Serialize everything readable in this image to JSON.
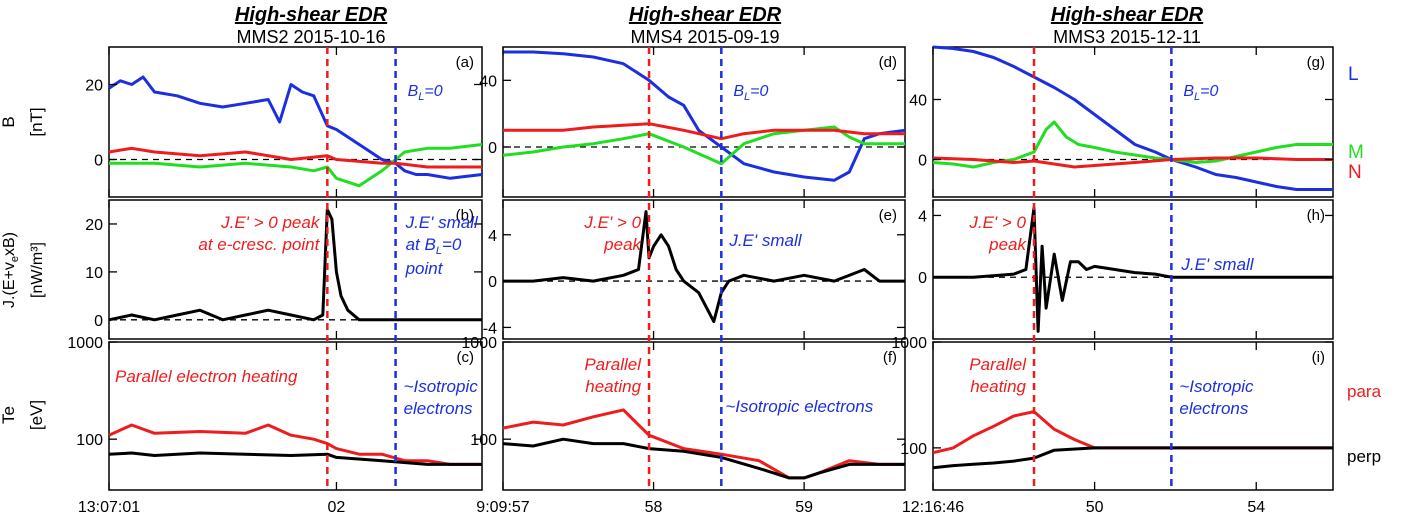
{
  "colors": {
    "L": "#1c2fe0",
    "M": "#22dd22",
    "N": "#ee1c1c",
    "black": "#000000",
    "red": "#ee1c1c",
    "blue": "#1c2fe0"
  },
  "row_labels": {
    "b_main": "B",
    "b_unit": "[nT]",
    "j_main": "J.(E+v",
    "j_sub": "e",
    "j_tail": "xB)",
    "j_unit": "[nW/m³]",
    "te_main": "Te",
    "te_unit": "[eV]"
  },
  "legend": {
    "B": [
      {
        "text": "L",
        "color": "#1c2fe0"
      },
      {
        "text": "M",
        "color": "#22dd22"
      },
      {
        "text": "N",
        "color": "#ee1c1c"
      }
    ],
    "Te": [
      {
        "text": "para",
        "color": "#ee1c1c"
      },
      {
        "text": "perp",
        "color": "#000000"
      }
    ]
  },
  "columns": [
    {
      "title": "High-shear EDR",
      "subtitle": "MMS2 2015-10-16",
      "x_ticks": [
        "13:07:01",
        "02"
      ],
      "panels": {
        "b": "(a)",
        "j": "(b)",
        "te": "(c)"
      },
      "annotations": {
        "bl0": "B",
        "bl0_sub": "L",
        "bl0_tail": "=0",
        "j_red": [
          "J.E' > 0 peak",
          "at e-cresc. point"
        ],
        "j_blue": [
          "J.E' small",
          "at B",
          "point"
        ],
        "j_blue_sub": "L",
        "j_blue_tail": "=0",
        "te_red": [
          "Parallel electron heating"
        ],
        "te_blue": [
          "~Isotropic",
          "electrons"
        ]
      },
      "b_ticks": [
        "20",
        "0"
      ],
      "j_ticks": [
        "20",
        "10",
        "0"
      ],
      "te_ticks": [
        "1000",
        "100"
      ]
    },
    {
      "title": "High-shear EDR",
      "subtitle": "MMS4 2015-09-19",
      "x_ticks": [
        "9:09:57",
        "58",
        "59"
      ],
      "panels": {
        "b": "(d)",
        "j": "(e)",
        "te": "(f)"
      },
      "annotations": {
        "bl0": "B",
        "bl0_sub": "L",
        "bl0_tail": "=0",
        "j_red": [
          "J.E' > 0",
          "peak"
        ],
        "j_blue": [
          "J.E' small"
        ],
        "te_red": [
          "Parallel",
          "heating"
        ],
        "te_blue": [
          "~Isotropic electrons"
        ]
      },
      "b_ticks": [
        "40",
        "0"
      ],
      "j_ticks": [
        "4",
        "0",
        "-4"
      ],
      "te_ticks": [
        "1000",
        "100"
      ]
    },
    {
      "title": "High-shear EDR",
      "subtitle": "MMS3 2015-12-11",
      "x_ticks": [
        "12:16:46",
        "50",
        "54"
      ],
      "panels": {
        "b": "(g)",
        "j": "(h)",
        "te": "(i)"
      },
      "annotations": {
        "bl0": "B",
        "bl0_sub": "L",
        "bl0_tail": "=0",
        "j_red": [
          "J.E' > 0",
          "peak"
        ],
        "j_blue": [
          "J.E' small"
        ],
        "te_red": [
          "Parallel",
          "heating"
        ],
        "te_blue": [
          "~Isotropic",
          "electrons"
        ]
      },
      "b_ticks": [
        "40",
        "0"
      ],
      "j_ticks": [
        "4",
        "0"
      ],
      "te_ticks": [
        "1000",
        "100"
      ]
    }
  ],
  "chart_data": [
    {
      "type": "line",
      "title": "High-shear EDR",
      "subtitle": "MMS2 2015-10-16",
      "x_ticks": [
        "13:07:01",
        "02"
      ],
      "x_range": [
        0,
        1.64
      ],
      "x_tick_values": [
        0,
        1
      ],
      "vlines": {
        "red": 0.96,
        "blue": 1.26
      },
      "B": {
        "ylim": [
          -10,
          30
        ],
        "ylabel": "B [nT]",
        "series": [
          {
            "name": "L",
            "x": [
              0,
              0.05,
              0.1,
              0.15,
              0.2,
              0.3,
              0.4,
              0.5,
              0.6,
              0.7,
              0.75,
              0.8,
              0.85,
              0.9,
              0.96,
              1.0,
              1.05,
              1.1,
              1.15,
              1.2,
              1.26,
              1.3,
              1.35,
              1.4,
              1.5,
              1.64
            ],
            "y": [
              19,
              21,
              20,
              22,
              18,
              17,
              15,
              14,
              15,
              16,
              10,
              20,
              18,
              17,
              9,
              8,
              6,
              4,
              2,
              0,
              -1,
              -3,
              -4,
              -4,
              -5,
              -4
            ]
          },
          {
            "name": "M",
            "x": [
              0,
              0.2,
              0.4,
              0.6,
              0.8,
              0.9,
              0.96,
              1.0,
              1.1,
              1.2,
              1.26,
              1.3,
              1.4,
              1.5,
              1.64
            ],
            "y": [
              -1,
              -1,
              -2,
              -1,
              -2,
              -3,
              -2,
              -5,
              -7,
              -3,
              0,
              2,
              3,
              3,
              4
            ]
          },
          {
            "name": "N",
            "x": [
              0,
              0.1,
              0.2,
              0.4,
              0.6,
              0.8,
              0.96,
              1.0,
              1.2,
              1.26,
              1.4,
              1.64
            ],
            "y": [
              2,
              3,
              2,
              1,
              2,
              0,
              1,
              0,
              -1,
              -1,
              -2,
              -2
            ]
          }
        ]
      },
      "J": {
        "ylim": [
          -4,
          25
        ],
        "ylabel": "J.(E+vexB) [nW/m3]",
        "series": [
          {
            "name": "J.E'",
            "x": [
              0,
              0.1,
              0.2,
              0.3,
              0.4,
              0.5,
              0.6,
              0.7,
              0.8,
              0.9,
              0.94,
              0.96,
              0.98,
              1.0,
              1.02,
              1.05,
              1.1,
              1.2,
              1.3,
              1.4,
              1.64
            ],
            "y": [
              0,
              1,
              0,
              1,
              2,
              0,
              1,
              2,
              1,
              0,
              1,
              23,
              21,
              10,
              5,
              2,
              0,
              0,
              0,
              0,
              0
            ]
          }
        ]
      },
      "Te": {
        "ylim": [
          30,
          1000
        ],
        "scale": "log",
        "ylabel": "Te [eV]",
        "series": [
          {
            "name": "para",
            "x": [
              0,
              0.1,
              0.2,
              0.4,
              0.6,
              0.7,
              0.8,
              0.9,
              0.96,
              1.0,
              1.1,
              1.2,
              1.3,
              1.4,
              1.5,
              1.64
            ],
            "y": [
              110,
              140,
              115,
              120,
              115,
              140,
              110,
              100,
              90,
              80,
              70,
              70,
              60,
              60,
              55,
              55
            ]
          },
          {
            "name": "perp",
            "x": [
              0,
              0.1,
              0.2,
              0.4,
              0.6,
              0.8,
              0.96,
              1.0,
              1.2,
              1.4,
              1.64
            ],
            "y": [
              70,
              72,
              68,
              72,
              70,
              68,
              70,
              65,
              60,
              55,
              55
            ]
          }
        ]
      }
    },
    {
      "type": "line",
      "title": "High-shear EDR",
      "subtitle": "MMS4 2015-09-19",
      "x_ticks": [
        "9:09:57",
        "58",
        "59"
      ],
      "x_range": [
        0,
        2.67
      ],
      "x_tick_values": [
        0,
        1,
        2
      ],
      "vlines": {
        "red": 0.97,
        "blue": 1.45
      },
      "B": {
        "ylim": [
          -30,
          60
        ],
        "ylabel": "B [nT]",
        "series": [
          {
            "name": "L",
            "x": [
              0,
              0.2,
              0.4,
              0.6,
              0.8,
              0.97,
              1.1,
              1.2,
              1.3,
              1.45,
              1.6,
              1.8,
              2.0,
              2.2,
              2.3,
              2.4,
              2.5,
              2.67
            ],
            "y": [
              57,
              57,
              56,
              54,
              50,
              40,
              30,
              25,
              10,
              0,
              -10,
              -15,
              -18,
              -20,
              -15,
              5,
              8,
              10
            ]
          },
          {
            "name": "M",
            "x": [
              0,
              0.2,
              0.4,
              0.6,
              0.8,
              0.97,
              1.2,
              1.45,
              1.6,
              1.8,
              2.0,
              2.2,
              2.3,
              2.4,
              2.67
            ],
            "y": [
              -5,
              -3,
              0,
              2,
              5,
              8,
              0,
              -10,
              2,
              8,
              10,
              12,
              6,
              2,
              2
            ]
          },
          {
            "name": "N",
            "x": [
              0,
              0.2,
              0.4,
              0.6,
              0.8,
              0.97,
              1.2,
              1.45,
              1.6,
              1.8,
              2.0,
              2.2,
              2.4,
              2.67
            ],
            "y": [
              10,
              10,
              10,
              12,
              13,
              14,
              10,
              5,
              8,
              10,
              10,
              10,
              8,
              8
            ]
          }
        ]
      },
      "J": {
        "ylim": [
          -5,
          7
        ],
        "ylabel": "J.(E+vexB) [nW/m3]",
        "series": [
          {
            "name": "J.E'",
            "x": [
              0,
              0.2,
              0.4,
              0.6,
              0.8,
              0.9,
              0.95,
              0.97,
              1.0,
              1.05,
              1.1,
              1.15,
              1.2,
              1.3,
              1.4,
              1.45,
              1.5,
              1.6,
              1.8,
              2.0,
              2.2,
              2.4,
              2.5,
              2.67
            ],
            "y": [
              0,
              0,
              0.3,
              0,
              0.5,
              1,
              6,
              2,
              3,
              4,
              3,
              1,
              0,
              -1,
              -3.5,
              -1,
              0,
              0.5,
              0,
              0.5,
              0,
              1,
              0,
              0
            ]
          }
        ]
      },
      "Te": {
        "ylim": [
          30,
          1000
        ],
        "scale": "log",
        "ylabel": "Te [eV]",
        "series": [
          {
            "name": "para",
            "x": [
              0,
              0.2,
              0.4,
              0.6,
              0.8,
              0.97,
              1.2,
              1.45,
              1.7,
              1.9,
              2.0,
              2.1,
              2.3,
              2.5,
              2.67
            ],
            "y": [
              130,
              150,
              140,
              170,
              200,
              110,
              80,
              70,
              60,
              40,
              40,
              45,
              60,
              55,
              55
            ]
          },
          {
            "name": "perp",
            "x": [
              0,
              0.2,
              0.4,
              0.6,
              0.8,
              0.97,
              1.2,
              1.45,
              1.7,
              1.9,
              2.0,
              2.1,
              2.3,
              2.5,
              2.67
            ],
            "y": [
              90,
              85,
              100,
              90,
              90,
              80,
              75,
              65,
              50,
              40,
              40,
              45,
              55,
              55,
              55
            ]
          }
        ]
      }
    },
    {
      "type": "line",
      "title": "High-shear EDR",
      "subtitle": "MMS3 2015-12-11",
      "x_ticks": [
        "12:16:46",
        "50",
        "54"
      ],
      "x_range": [
        0,
        9.9
      ],
      "x_tick_values": [
        0,
        4,
        8
      ],
      "vlines": {
        "red": 2.5,
        "blue": 5.9
      },
      "B": {
        "ylim": [
          -25,
          75
        ],
        "ylabel": "B [nT]",
        "series": [
          {
            "name": "L",
            "x": [
              0,
              0.5,
              1.0,
              1.5,
              2.0,
              2.5,
              3.0,
              3.5,
              4.0,
              4.5,
              5.0,
              5.5,
              5.9,
              6.5,
              7.0,
              7.5,
              8.0,
              8.5,
              9.0,
              9.9
            ],
            "y": [
              75,
              74,
              72,
              68,
              62,
              55,
              48,
              40,
              30,
              20,
              10,
              5,
              0,
              -5,
              -10,
              -12,
              -15,
              -18,
              -20,
              -20
            ]
          },
          {
            "name": "M",
            "x": [
              0,
              0.5,
              1.0,
              1.5,
              2.0,
              2.5,
              2.8,
              3.0,
              3.3,
              3.6,
              4.0,
              4.5,
              5.0,
              5.5,
              5.9,
              6.5,
              7.0,
              7.5,
              8.0,
              8.5,
              9.0,
              9.9
            ],
            "y": [
              -2,
              -3,
              -5,
              -2,
              0,
              5,
              20,
              25,
              15,
              10,
              8,
              5,
              3,
              1,
              0,
              -2,
              -1,
              2,
              5,
              8,
              10,
              10
            ]
          },
          {
            "name": "N",
            "x": [
              0,
              1.0,
              2.0,
              2.5,
              3.0,
              3.5,
              4.0,
              5.0,
              5.9,
              7.0,
              8.0,
              9.0,
              9.9
            ],
            "y": [
              1,
              0,
              -2,
              -1,
              -3,
              -5,
              -4,
              -2,
              0,
              1,
              1,
              0,
              0
            ]
          }
        ]
      },
      "J": {
        "ylim": [
          -4,
          5
        ],
        "ylabel": "J.(E+vexB) [nW/m3]",
        "series": [
          {
            "name": "J.E'",
            "x": [
              0,
              1,
              2,
              2.3,
              2.5,
              2.6,
              2.7,
              2.8,
              3.0,
              3.2,
              3.4,
              3.6,
              3.8,
              4.0,
              4.5,
              5.0,
              5.5,
              5.9,
              7,
              8,
              9,
              9.9
            ],
            "y": [
              0,
              0,
              0.2,
              0.5,
              4.5,
              -3.5,
              2,
              -2,
              1.5,
              -1.5,
              1,
              1,
              0.5,
              0.7,
              0.5,
              0.3,
              0.2,
              0,
              0,
              0,
              0,
              0
            ]
          }
        ]
      },
      "Te": {
        "ylim": [
          40,
          1000
        ],
        "scale": "log",
        "ylabel": "Te [eV]",
        "series": [
          {
            "name": "para",
            "x": [
              0,
              0.5,
              1.0,
              1.5,
              2.0,
              2.5,
              3.0,
              3.5,
              4.0,
              5.0,
              5.9,
              7.0,
              8.0,
              9.0,
              9.9
            ],
            "y": [
              90,
              100,
              130,
              160,
              200,
              220,
              150,
              120,
              100,
              100,
              100,
              100,
              100,
              100,
              100
            ]
          },
          {
            "name": "perp",
            "x": [
              0,
              0.5,
              1.0,
              1.5,
              2.0,
              2.5,
              3.0,
              4.0,
              5.0,
              5.9,
              7.0,
              8.0,
              9.0,
              9.9
            ],
            "y": [
              65,
              68,
              70,
              72,
              75,
              80,
              95,
              100,
              100,
              100,
              100,
              100,
              100,
              100
            ]
          }
        ]
      }
    }
  ]
}
